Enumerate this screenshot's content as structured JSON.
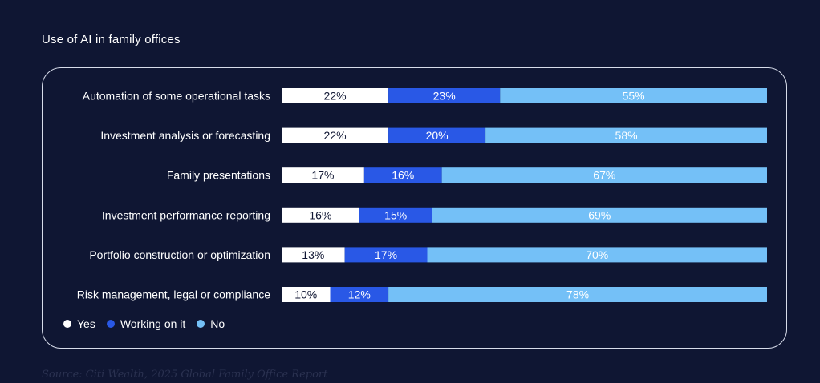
{
  "title": "Use of AI in family offices",
  "source": "Source: Citi Wealth, 2025 Global Family Office Report",
  "colors": {
    "yes": "#ffffff",
    "working": "#2958e6",
    "no": "#74c0f7",
    "background": "#0f1633"
  },
  "chart_data": {
    "type": "bar",
    "orientation": "horizontal",
    "stacked": true,
    "categories": [
      "Automation of some operational tasks",
      "Investment analysis or forecasting",
      "Family presentations",
      "Investment performance reporting",
      "Portfolio construction or optimization",
      "Risk management, legal or compliance"
    ],
    "series": [
      {
        "name": "Yes",
        "values": [
          22,
          22,
          17,
          16,
          13,
          10
        ],
        "labels": [
          "22%",
          "22%",
          "17%",
          "16%",
          "13%",
          "10%"
        ]
      },
      {
        "name": "Working on it",
        "values": [
          23,
          20,
          16,
          15,
          17,
          12
        ],
        "labels": [
          "23%",
          "20%",
          "16%",
          "15%",
          "17%",
          "12%"
        ]
      },
      {
        "name": "No",
        "values": [
          55,
          58,
          67,
          69,
          70,
          78
        ],
        "labels": [
          "55%",
          "58%",
          "67%",
          "69%",
          "70%",
          "78%"
        ]
      }
    ],
    "xlim": [
      0,
      100
    ],
    "legend_position": "bottom-left",
    "grid": false
  }
}
